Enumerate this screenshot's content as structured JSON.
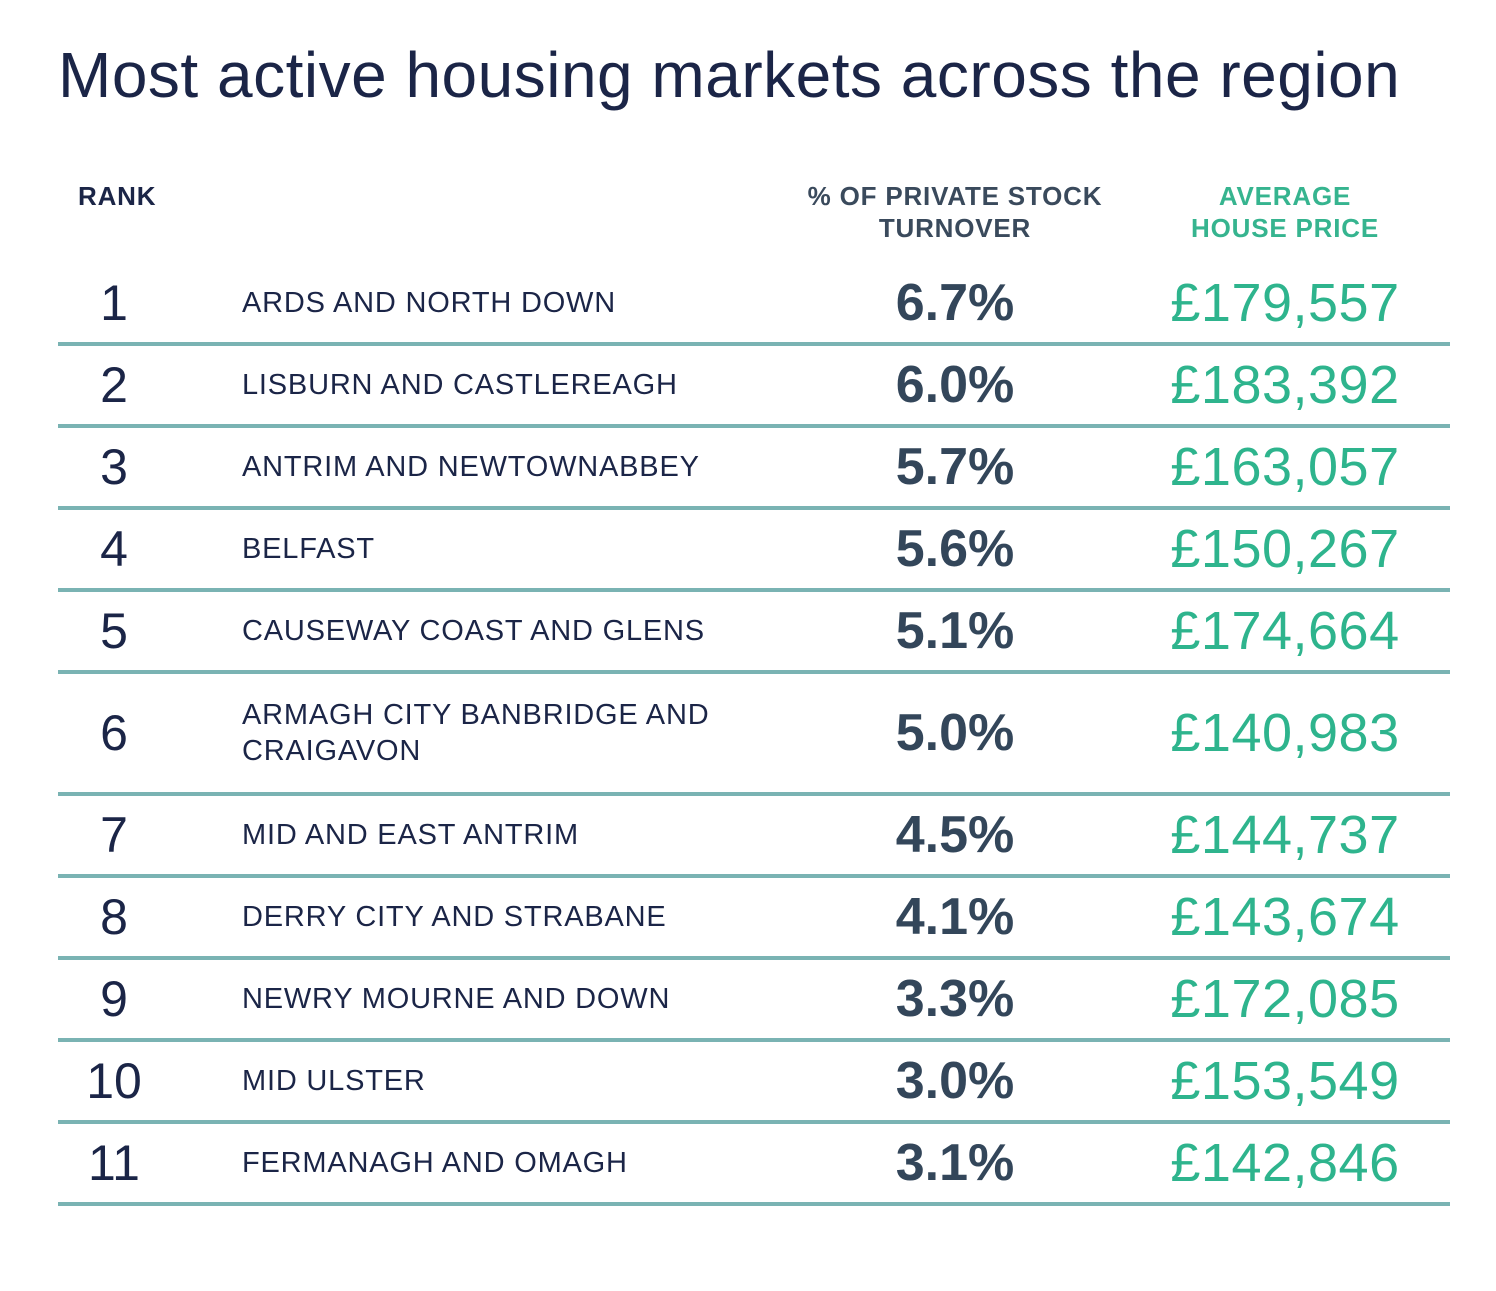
{
  "title": "Most active housing markets across the region",
  "headers": {
    "rank": "RANK",
    "turnover_line1": "% OF PRIVATE STOCK",
    "turnover_line2": "TURNOVER",
    "price_line1": "AVERAGE",
    "price_line2": "HOUSE PRICE"
  },
  "colors": {
    "title": "#1b2547",
    "turnover": "#33465a",
    "price": "#2eb48d",
    "divider": "#7ab3b3"
  },
  "chart_data": {
    "type": "table",
    "title": "Most active housing markets across the region",
    "columns": [
      "RANK",
      "",
      "% OF PRIVATE STOCK TURNOVER",
      "AVERAGE HOUSE PRICE"
    ],
    "rows": [
      {
        "rank": "1",
        "area": "ARDS AND NORTH DOWN",
        "turnover": "6.7%",
        "price": "£179,557"
      },
      {
        "rank": "2",
        "area": "LISBURN AND CASTLEREAGH",
        "turnover": "6.0%",
        "price": "£183,392"
      },
      {
        "rank": "3",
        "area": "ANTRIM AND NEWTOWNABBEY",
        "turnover": "5.7%",
        "price": "£163,057"
      },
      {
        "rank": "4",
        "area": "BELFAST",
        "turnover": "5.6%",
        "price": "£150,267"
      },
      {
        "rank": "5",
        "area": "CAUSEWAY COAST AND GLENS",
        "turnover": "5.1%",
        "price": "£174,664"
      },
      {
        "rank": "6",
        "area": "ARMAGH CITY BANBRIDGE AND CRAIGAVON",
        "turnover": "5.0%",
        "price": "£140,983"
      },
      {
        "rank": "7",
        "area": "MID AND EAST ANTRIM",
        "turnover": "4.5%",
        "price": "£144,737"
      },
      {
        "rank": "8",
        "area": "DERRY CITY AND STRABANE",
        "turnover": "4.1%",
        "price": "£143,674"
      },
      {
        "rank": "9",
        "area": "NEWRY MOURNE AND DOWN",
        "turnover": "3.3%",
        "price": "£172,085"
      },
      {
        "rank": "10",
        "area": "MID ULSTER",
        "turnover": "3.0%",
        "price": "£153,549"
      },
      {
        "rank": "11",
        "area": "FERMANAGH AND OMAGH",
        "turnover": "3.1%",
        "price": "£142,846"
      }
    ]
  }
}
